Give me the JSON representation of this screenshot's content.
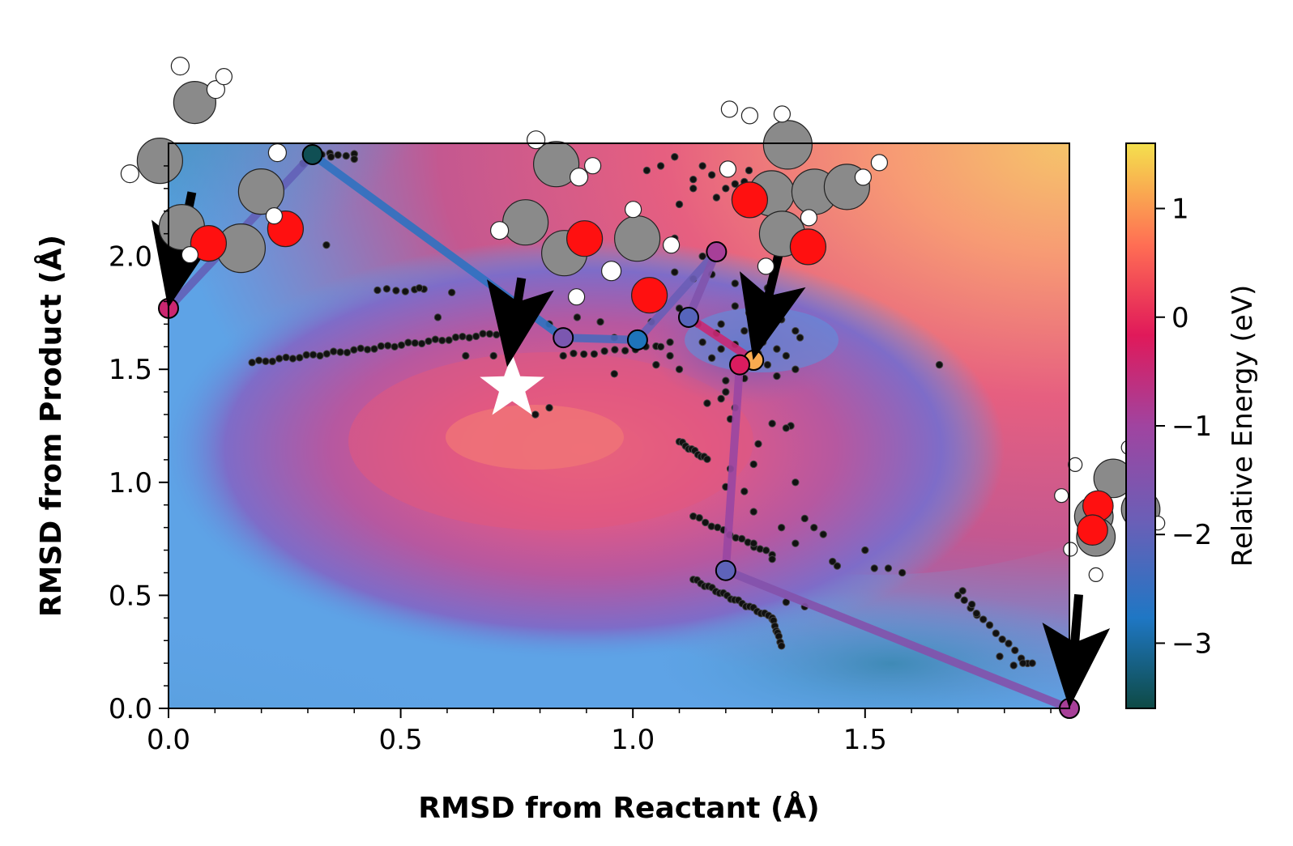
{
  "chart_data": {
    "type": "contour",
    "title": "",
    "xlabel": "RMSD from Reactant (Å)",
    "ylabel": "RMSD from Product (Å)",
    "colorbar_label": "Relative Energy (eV)",
    "xlim": [
      0.0,
      1.94
    ],
    "ylim": [
      0.0,
      2.5
    ],
    "clim": [
      -3.6,
      1.6
    ],
    "x_ticks": [
      {
        "value": 0.0,
        "label": "0.0"
      },
      {
        "value": 0.5,
        "label": "0.5"
      },
      {
        "value": 1.0,
        "label": "1.0"
      },
      {
        "value": 1.5,
        "label": "1.5"
      }
    ],
    "y_ticks": [
      {
        "value": 0.0,
        "label": "0.0"
      },
      {
        "value": 0.5,
        "label": "0.5"
      },
      {
        "value": 1.0,
        "label": "1.0"
      },
      {
        "value": 1.5,
        "label": "1.5"
      },
      {
        "value": 2.0,
        "label": "2.0"
      }
    ],
    "colorbar_ticks": [
      {
        "value": 1,
        "label": "1"
      },
      {
        "value": 0,
        "label": "0"
      },
      {
        "value": -1,
        "label": "−1"
      },
      {
        "value": -2,
        "label": "−2"
      },
      {
        "value": -3,
        "label": "−3"
      }
    ],
    "colormap": [
      "#0e4a45",
      "#1f77c4",
      "#6a5fb7",
      "#a044a0",
      "#e0195a",
      "#ff6e54",
      "#f4e04d"
    ],
    "energy_minimum": {
      "x": 0.74,
      "y": 1.42
    },
    "path": [
      {
        "x": 0.0,
        "y": 1.77,
        "energy": -0.4
      },
      {
        "x": 0.31,
        "y": 2.45,
        "energy": -3.5
      },
      {
        "x": 0.85,
        "y": 1.64,
        "energy": -1.6
      },
      {
        "x": 1.01,
        "y": 1.63,
        "energy": -2.8
      },
      {
        "x": 1.18,
        "y": 2.02,
        "energy": -0.9
      },
      {
        "x": 1.12,
        "y": 1.73,
        "energy": -2.1
      },
      {
        "x": 1.26,
        "y": 1.54,
        "energy": 1.2
      },
      {
        "x": 1.23,
        "y": 1.52,
        "energy": -0.2
      },
      {
        "x": 1.2,
        "y": 0.61,
        "energy": -2.0
      },
      {
        "x": 1.94,
        "y": 0.0,
        "energy": -0.9
      }
    ],
    "sample_clusters": [
      {
        "x0": 0.18,
        "y0": 1.53,
        "x1": 0.75,
        "y1": 1.67,
        "n": 40
      },
      {
        "x0": 0.45,
        "y0": 1.85,
        "x1": 0.55,
        "y1": 1.85,
        "n": 6
      },
      {
        "x0": 0.33,
        "y0": 2.45,
        "x1": 0.4,
        "y1": 2.45,
        "n": 5
      },
      {
        "x0": 1.13,
        "y0": 0.57,
        "x1": 1.3,
        "y1": 0.4,
        "n": 22
      },
      {
        "x0": 1.3,
        "y0": 0.4,
        "x1": 1.32,
        "y1": 0.28,
        "n": 8
      },
      {
        "x0": 1.13,
        "y0": 0.85,
        "x1": 1.3,
        "y1": 0.68,
        "n": 14
      },
      {
        "x0": 1.1,
        "y0": 1.18,
        "x1": 1.16,
        "y1": 1.1,
        "n": 10
      },
      {
        "x0": 1.7,
        "y0": 0.5,
        "x1": 1.85,
        "y1": 0.2,
        "n": 12
      },
      {
        "x0": 0.85,
        "y0": 1.56,
        "x1": 1.05,
        "y1": 1.6,
        "n": 10
      }
    ],
    "sample_scatter": [
      [
        0.35,
        2.44
      ],
      [
        0.4,
        2.43
      ],
      [
        0.29,
        2.41
      ],
      [
        0.34,
        2.05
      ],
      [
        0.54,
        1.86
      ],
      [
        0.61,
        1.84
      ],
      [
        0.58,
        1.73
      ],
      [
        0.64,
        1.56
      ],
      [
        0.7,
        1.56
      ],
      [
        0.79,
        1.3
      ],
      [
        0.82,
        1.33
      ],
      [
        0.82,
        1.7
      ],
      [
        0.88,
        1.73
      ],
      [
        0.93,
        1.71
      ],
      [
        0.96,
        1.64
      ],
      [
        1.04,
        1.71
      ],
      [
        1.08,
        1.62
      ],
      [
        1.08,
        1.56
      ],
      [
        1.1,
        1.5
      ],
      [
        1.06,
        1.6
      ],
      [
        1.05,
        1.86
      ],
      [
        1.09,
        2.08
      ],
      [
        1.1,
        2.23
      ],
      [
        1.13,
        2.34
      ],
      [
        1.06,
        2.4
      ],
      [
        1.03,
        2.38
      ],
      [
        1.09,
        2.44
      ],
      [
        1.15,
        2.4
      ],
      [
        1.13,
        2.3
      ],
      [
        1.17,
        2.36
      ],
      [
        1.15,
        2.0
      ],
      [
        1.17,
        1.92
      ],
      [
        1.18,
        2.26
      ],
      [
        1.2,
        2.3
      ],
      [
        1.22,
        2.32
      ],
      [
        1.25,
        2.38
      ],
      [
        1.24,
        2.2
      ],
      [
        1.27,
        2.21
      ],
      [
        1.24,
        2.33
      ],
      [
        1.3,
        2.28
      ],
      [
        1.3,
        2.14
      ],
      [
        1.35,
        2.09
      ],
      [
        1.2,
        1.45
      ],
      [
        1.17,
        1.55
      ],
      [
        1.18,
        1.66
      ],
      [
        1.14,
        1.7
      ],
      [
        1.1,
        1.77
      ],
      [
        1.09,
        1.93
      ],
      [
        1.13,
        1.9
      ],
      [
        1.19,
        1.59
      ],
      [
        1.22,
        1.61
      ],
      [
        1.24,
        1.67
      ],
      [
        1.27,
        1.7
      ],
      [
        1.28,
        1.62
      ],
      [
        1.31,
        1.59
      ],
      [
        1.33,
        1.56
      ],
      [
        1.32,
        1.72
      ],
      [
        1.3,
        1.76
      ],
      [
        1.34,
        1.81
      ],
      [
        1.29,
        1.86
      ],
      [
        1.26,
        1.81
      ],
      [
        1.22,
        1.88
      ],
      [
        1.35,
        1.67
      ],
      [
        1.36,
        1.64
      ],
      [
        1.29,
        1.52
      ],
      [
        1.31,
        1.47
      ],
      [
        1.24,
        1.46
      ],
      [
        1.19,
        1.37
      ],
      [
        1.22,
        1.33
      ],
      [
        1.21,
        1.28
      ],
      [
        1.16,
        1.35
      ],
      [
        1.2,
        1.4
      ],
      [
        1.35,
        1.5
      ],
      [
        1.34,
        1.25
      ],
      [
        1.3,
        1.26
      ],
      [
        1.33,
        1.24
      ],
      [
        1.27,
        1.17
      ],
      [
        1.26,
        1.08
      ],
      [
        1.24,
        0.96
      ],
      [
        1.21,
        1.06
      ],
      [
        1.2,
        0.98
      ],
      [
        1.35,
        1.0
      ],
      [
        1.26,
        0.87
      ],
      [
        1.32,
        0.8
      ],
      [
        1.37,
        0.84
      ],
      [
        1.39,
        0.8
      ],
      [
        1.41,
        0.77
      ],
      [
        1.35,
        0.73
      ],
      [
        1.3,
        0.66
      ],
      [
        1.26,
        0.73
      ],
      [
        1.43,
        0.65
      ],
      [
        1.44,
        0.63
      ],
      [
        1.5,
        0.7
      ],
      [
        1.55,
        0.62
      ],
      [
        1.58,
        0.6
      ],
      [
        1.66,
        1.52
      ],
      [
        1.71,
        0.52
      ],
      [
        1.73,
        0.46
      ],
      [
        1.74,
        0.42
      ],
      [
        1.79,
        0.23
      ],
      [
        1.82,
        0.19
      ],
      [
        1.86,
        0.2
      ],
      [
        1.84,
        0.2
      ],
      [
        1.52,
        0.62
      ],
      [
        1.37,
        0.45
      ],
      [
        1.33,
        0.47
      ],
      [
        1.22,
        1.78
      ],
      [
        1.25,
        1.75
      ],
      [
        1.19,
        1.7
      ],
      [
        1.15,
        1.62
      ],
      [
        1.05,
        1.52
      ],
      [
        0.96,
        1.48
      ],
      [
        1.27,
        1.57
      ],
      [
        1.29,
        1.78
      ]
    ],
    "annotation_arrows": [
      {
        "tail_x": 0.05,
        "tail_y": 2.28,
        "tip_x": 0.0,
        "tip_y": 1.78
      },
      {
        "tail_x": 0.76,
        "tail_y": 1.9,
        "tip_x": 0.73,
        "tip_y": 1.52
      },
      {
        "tail_x": 1.32,
        "tail_y": 2.06,
        "tip_x": 1.26,
        "tip_y": 1.55
      },
      {
        "tail_x": 1.96,
        "tail_y": 0.5,
        "tip_x": 1.94,
        "tip_y": 0.01
      }
    ],
    "molecule_insets": [
      {
        "near_x": 0.0,
        "near_y": 1.77
      },
      {
        "near_x": 0.84,
        "near_y": 1.64
      },
      {
        "near_x": 1.26,
        "near_y": 1.54
      },
      {
        "near_x": 1.94,
        "near_y": 0.0
      }
    ]
  }
}
